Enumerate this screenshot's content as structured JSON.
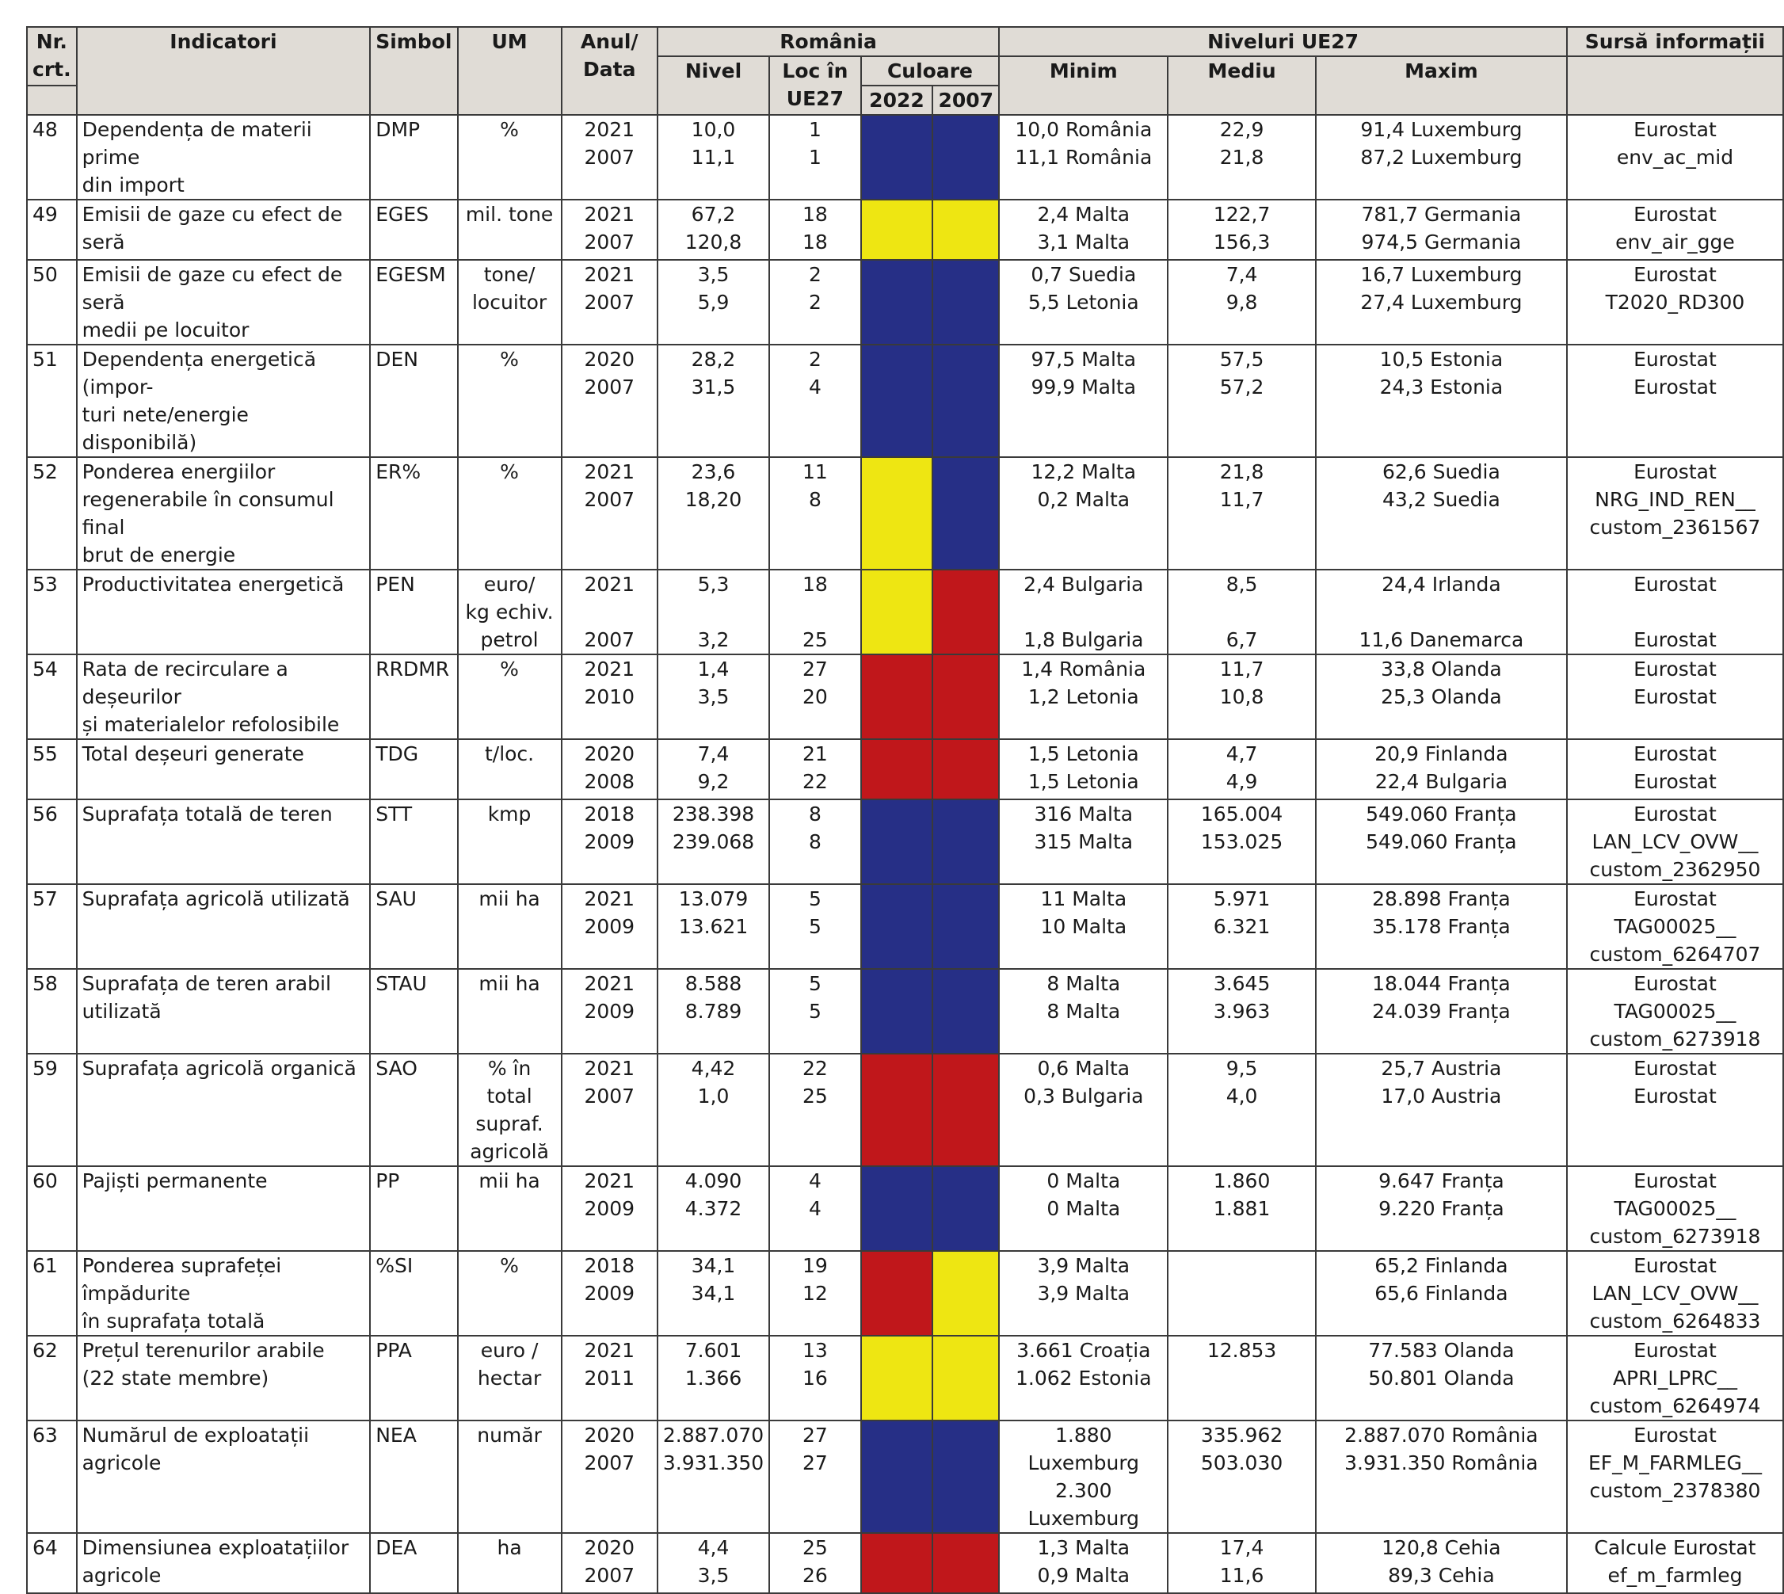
{
  "headers": {
    "nr": "Nr.\ncrt.",
    "indicatori": "Indicatori",
    "simbol": "Simbol",
    "um": "UM",
    "anul": "Anul/\nData",
    "romania": "România",
    "niveluri": "Niveluri UE27",
    "sursa": "Sursă informații",
    "nivel": "Nivel",
    "loc": "Loc în\nUE27",
    "culoare": "Culoare",
    "y2022": "2022",
    "y2007": "2007",
    "minim": "Minim",
    "mediu": "Mediu",
    "maxim": "Maxim"
  },
  "colors": {
    "blue": "#262f86",
    "yellow": "#eee612",
    "red": "#c0171b"
  },
  "rows": [
    {
      "nr": "48",
      "ind": "Dependența de materii prime\ndin import",
      "sim": "DMP",
      "um": "%",
      "an": "2021\n2007",
      "niv": "10,0\n11,1",
      "loc": "1\n1",
      "c1": "blue",
      "c2": "blue",
      "min": "10,0 România\n11,1 România",
      "med": "22,9\n21,8",
      "max": "91,4 Luxemburg\n87,2 Luxemburg",
      "src": "Eurostat env_ac_mid",
      "h": 106
    },
    {
      "nr": "49",
      "ind": "Emisii de gaze cu efect de seră",
      "sim": "EGES",
      "um": "mil. tone",
      "an": "2021\n2007",
      "niv": "67,2\n120,8",
      "loc": "18\n18",
      "c1": "yellow",
      "c2": "yellow",
      "min": "2,4 Malta\n3,1 Malta",
      "med": "122,7\n156,3",
      "max": "781,7 Germania\n974,5 Germania",
      "src": "Eurostat\nenv_air_gge",
      "h": 76
    },
    {
      "nr": "50",
      "ind": "Emisii de gaze cu efect de seră\nmedii pe locuitor",
      "sim": "EGESM",
      "um": "tone/\nlocuitor",
      "an": "2021\n2007",
      "niv": "3,5\n5,9",
      "loc": "2\n2",
      "c1": "blue",
      "c2": "blue",
      "min": "0,7 Suedia\n5,5 Letonia",
      "med": "7,4\n9,8",
      "max": "16,7 Luxemburg\n27,4 Luxemburg",
      "src": "Eurostat\nT2020_RD300",
      "h": 76
    },
    {
      "nr": "51",
      "ind": "Dependența energetică (impor-\nturi nete/energie disponibilă)",
      "sim": "DEN",
      "um": "%",
      "an": "2020\n2007",
      "niv": "28,2\n31,5",
      "loc": "2\n4",
      "c1": "blue",
      "c2": "blue",
      "min": "97,5 Malta\n99,9 Malta",
      "med": "57,5\n57,2",
      "max": "10,5 Estonia\n24,3 Estonia",
      "src": "Eurostat\nEurostat",
      "h": 76
    },
    {
      "nr": "52",
      "ind": "Ponderea energiilor\nregenerabile în consumul final\nbrut de energie",
      "sim": "ER%",
      "um": "%",
      "an": "2021\n2007",
      "niv": "23,6\n18,20",
      "loc": "11\n8",
      "c1": "yellow",
      "c2": "blue",
      "min": "12,2 Malta\n0,2 Malta",
      "med": "21,8\n11,7",
      "max": "62,6 Suedia\n43,2 Suedia",
      "src": "Eurostat\nNRG_IND_REN__\ncustom_2361567",
      "h": 106
    },
    {
      "nr": "53",
      "ind": "Productivitatea energetică",
      "sim": "PEN",
      "um": "euro/\nkg echiv.\npetrol",
      "an": "2021\n\n2007",
      "niv": "5,3\n\n3,2",
      "loc": "18\n\n25",
      "c1": "yellow",
      "c2": "red",
      "min": "2,4 Bulgaria\n\n1,8 Bulgaria",
      "med": "8,5\n\n6,7",
      "max": "24,4 Irlanda\n\n11,6 Danemarca",
      "src": "Eurostat\n\nEurostat",
      "h": 106
    },
    {
      "nr": "54",
      "ind": "Rata de recirculare a deșeurilor\nși materialelor refolosibile",
      "sim": "RRDMR",
      "um": "%",
      "an": "2021\n2010",
      "niv": "1,4\n3,5",
      "loc": "27\n20",
      "c1": "red",
      "c2": "red",
      "min": "1,4 România\n1,2 Letonia",
      "med": "11,7\n10,8",
      "max": "33,8 Olanda\n25,3 Olanda",
      "src": "Eurostat\nEurostat",
      "h": 76
    },
    {
      "nr": "55",
      "ind": "Total deșeuri generate",
      "sim": "TDG",
      "um": "t/loc.",
      "an": "2020\n2008",
      "niv": "7,4\n9,2",
      "loc": "21\n22",
      "c1": "red",
      "c2": "red",
      "min": "1,5 Letonia\n1,5 Letonia",
      "med": "4,7\n4,9",
      "max": "20,9 Finlanda\n22,4 Bulgaria",
      "src": "Eurostat\nEurostat",
      "h": 76
    },
    {
      "nr": "56",
      "ind": "Suprafața totală de teren",
      "sim": "STT",
      "um": "kmp",
      "an": "2018\n2009",
      "niv": "238.398\n239.068",
      "loc": "8\n8",
      "c1": "blue",
      "c2": "blue",
      "min": "316 Malta\n315 Malta",
      "med": "165.004\n153.025",
      "max": "549.060 Franța\n549.060 Franța",
      "src": "Eurostat\nLAN_LCV_OVW__\ncustom_2362950",
      "h": 106
    },
    {
      "nr": "57",
      "ind": "Suprafața agricolă utilizată",
      "sim": "SAU",
      "um": "mii ha",
      "an": "2021\n2009",
      "niv": "13.079\n13.621",
      "loc": "5\n5",
      "c1": "blue",
      "c2": "blue",
      "min": "11 Malta\n10 Malta",
      "med": "5.971\n6.321",
      "max": "28.898 Franța\n35.178 Franța",
      "src": "Eurostat\nTAG00025__\ncustom_6264707",
      "h": 106
    },
    {
      "nr": "58",
      "ind": "Suprafața de teren arabil\nutilizată",
      "sim": "STAU",
      "um": "mii ha",
      "an": "2021\n2009",
      "niv": "8.588\n8.789",
      "loc": "5\n5",
      "c1": "blue",
      "c2": "blue",
      "min": "8 Malta\n8 Malta",
      "med": "3.645\n3.963",
      "max": "18.044 Franța\n24.039 Franța",
      "src": "Eurostat\nTAG00025__\ncustom_6273918",
      "h": 106
    },
    {
      "nr": "59",
      "ind": "Suprafața agricolă organică",
      "sim": "SAO",
      "um": "% în total\nsupraf.\nagricolă",
      "an": "2021\n2007",
      "niv": "4,42\n1,0",
      "loc": "22\n25",
      "c1": "red",
      "c2": "red",
      "min": "0,6 Malta\n0,3 Bulgaria",
      "med": "9,5\n4,0",
      "max": "25,7 Austria\n17,0 Austria",
      "src": "Eurostat\nEurostat",
      "h": 106
    },
    {
      "nr": "60",
      "ind": "Pajiști permanente",
      "sim": "PP",
      "um": "mii ha",
      "an": "2021\n2009",
      "niv": "4.090\n4.372",
      "loc": "4\n4",
      "c1": "blue",
      "c2": "blue",
      "min": "0 Malta\n0 Malta",
      "med": "1.860\n1.881",
      "max": "9.647 Franța\n9.220 Franța",
      "src": "Eurostat\nTAG00025__\ncustom_6273918",
      "h": 106
    },
    {
      "nr": "61",
      "ind": "Ponderea suprafeței împădurite\nîn suprafața totală",
      "sim": "%SI",
      "um": "%",
      "an": "2018\n2009",
      "niv": "34,1\n34,1",
      "loc": "19\n12",
      "c1": "red",
      "c2": "yellow",
      "min": "3,9 Malta\n3,9 Malta",
      "med": "",
      "max": "65,2 Finlanda\n65,6 Finlanda",
      "src": "Eurostat\nLAN_LCV_OVW__\ncustom_6264833",
      "h": 106
    },
    {
      "nr": "62",
      "ind": "Prețul terenurilor arabile\n(22 state membre)",
      "sim": "PPA",
      "um": "euro /\nhectar",
      "an": "2021\n2011",
      "niv": "7.601\n1.366",
      "loc": "13\n16",
      "c1": "yellow",
      "c2": "yellow",
      "min": "3.661 Croația\n1.062 Estonia",
      "med": "12.853",
      "max": "77.583 Olanda\n50.801 Olanda",
      "src": "Eurostat\nAPRI_LPRC__\ncustom_6264974",
      "h": 106
    },
    {
      "nr": "63",
      "ind": "Numărul de exploatații agricole",
      "sim": "NEA",
      "um": "număr",
      "an": "2020\n2007",
      "niv": "2.887.070\n3.931.350",
      "loc": "27\n27",
      "c1": "blue",
      "c2": "blue",
      "min": "1.880 Luxemburg\n2.300 Luxemburg",
      "med": "335.962\n503.030",
      "max": "2.887.070 România\n3.931.350 România",
      "src": "Eurostat\nEF_M_FARMLEG__\ncustom_2378380",
      "h": 106
    },
    {
      "nr": "64",
      "ind": "Dimensiunea exploatațiilor\nagricole",
      "sim": "DEA",
      "um": "ha",
      "an": "2020\n2007",
      "niv": "4,4\n3,5",
      "loc": "25\n26",
      "c1": "red",
      "c2": "red",
      "min": "1,3 Malta\n0,9 Malta",
      "med": "17,4\n11,6",
      "max": "120,8 Cehia\n89,3 Cehia",
      "src": "Calcule Eurostat\nef_m_farmleg",
      "h": 76
    }
  ]
}
